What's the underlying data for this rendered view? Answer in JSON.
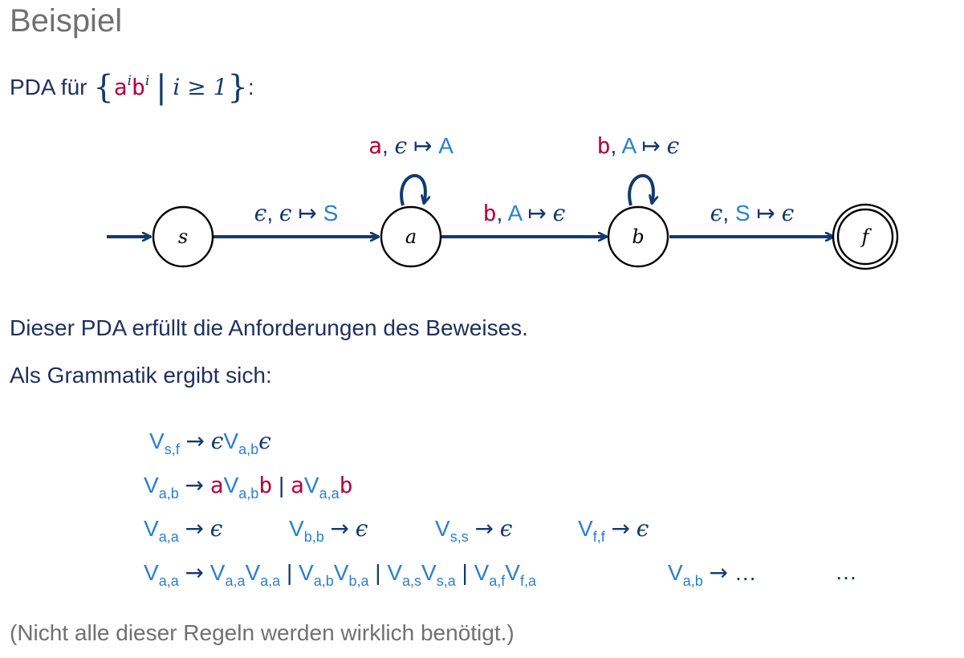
{
  "title": "Beispiel",
  "intro": {
    "prefix": "PDA für",
    "a": "a",
    "b": "b",
    "exp": "i",
    "condition": "i ≥ 1",
    "suffix": ":"
  },
  "diagram": {
    "states": [
      {
        "id": "s",
        "label": "s",
        "accepting": false,
        "initial": true
      },
      {
        "id": "a",
        "label": "a",
        "accepting": false,
        "initial": false
      },
      {
        "id": "b",
        "label": "b",
        "accepting": false,
        "initial": false
      },
      {
        "id": "f",
        "label": "f",
        "accepting": true,
        "initial": false
      }
    ],
    "transitions": [
      {
        "from": "s",
        "to": "a",
        "input": "ϵ",
        "pop": "ϵ",
        "push": "S"
      },
      {
        "from": "a",
        "to": "a",
        "input": "a",
        "pop": "ϵ",
        "push": "A"
      },
      {
        "from": "a",
        "to": "b",
        "input": "b",
        "pop": "A",
        "push": "ϵ"
      },
      {
        "from": "b",
        "to": "b",
        "input": "b",
        "pop": "A",
        "push": "ϵ"
      },
      {
        "from": "b",
        "to": "f",
        "input": "ϵ",
        "pop": "S",
        "push": "ϵ"
      }
    ],
    "colors": {
      "navy": "#123a6e",
      "red": "#b8003c",
      "blue": "#2a7fd4"
    }
  },
  "text1": "Dieser PDA erfüllt die Anforderungen des Beweises.",
  "text2": "Als Grammatik ergibt sich:",
  "grammar": {
    "eps": "ϵ",
    "arrow": "→",
    "bar": "|",
    "ellipsis": "…",
    "V": "V",
    "line1": {
      "lhs_sub": "s,f",
      "rhs_sub": "a,b"
    },
    "line2": {
      "lhs_sub": "a,b",
      "t1": "a",
      "sub1": "a,b",
      "t2": "b",
      "t3": "a",
      "sub2": "a,a",
      "t4": "b"
    },
    "line3": [
      {
        "sub": "a,a"
      },
      {
        "sub": "b,b"
      },
      {
        "sub": "s,s"
      },
      {
        "sub": "f,f"
      }
    ],
    "line4": {
      "lhs_sub": "a,a",
      "pairs": [
        [
          "a,a",
          "a,a"
        ],
        [
          "a,b",
          "b,a"
        ],
        [
          "a,s",
          "s,a"
        ],
        [
          "a,f",
          "f,a"
        ]
      ],
      "second_lhs_sub": "a,b"
    }
  },
  "note": "(Nicht alle dieser Regeln werden wirklich benötigt.)"
}
